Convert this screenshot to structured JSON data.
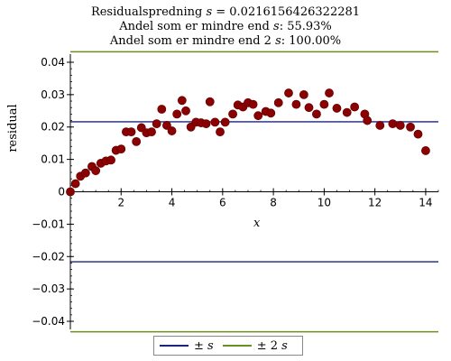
{
  "title_lines": {
    "line1_prefix": "Residualspredning ",
    "line1_var": "s",
    "line1_value": " = 0.0216156426322281",
    "line2_prefix": "Andel som er mindre end ",
    "line2_var": "s",
    "line2_value": ": 55.93%",
    "line3_prefix": "Andel som er mindre end 2 ",
    "line3_var": "s",
    "line3_value": ": 100.00%"
  },
  "colors": {
    "points": "#8b0000",
    "s_line": "#1a237e",
    "two_s_line": "#6b8e23",
    "axis": "#000000"
  },
  "legend": [
    {
      "label_prefix": "± ",
      "label_var": "s",
      "color": "#1a237e"
    },
    {
      "label_prefix": "± 2 ",
      "label_var": "s",
      "color": "#6b8e23"
    }
  ],
  "chart_data": {
    "type": "scatter",
    "xlabel": "x",
    "ylabel": "residual",
    "xlim": [
      0,
      14.5
    ],
    "ylim": [
      -0.0425,
      0.0425
    ],
    "x_ticks": [
      2,
      4,
      6,
      8,
      10,
      12,
      14
    ],
    "y_ticks": [
      0.04,
      0.03,
      0.02,
      0.01,
      0,
      -0.01,
      -0.02,
      -0.03,
      -0.04
    ],
    "y_tick_labels": [
      "0.04",
      "0.03",
      "0.02",
      "0.01",
      "0",
      "−0.01",
      "−0.02",
      "−0.03",
      "−0.04"
    ],
    "s_value": 0.0216156426322281,
    "points": [
      [
        0.0,
        0.0
      ],
      [
        0.2,
        0.0025
      ],
      [
        0.4,
        0.0048
      ],
      [
        0.6,
        0.0058
      ],
      [
        0.85,
        0.0078
      ],
      [
        1.0,
        0.0065
      ],
      [
        1.2,
        0.0088
      ],
      [
        1.4,
        0.0095
      ],
      [
        1.6,
        0.0098
      ],
      [
        1.8,
        0.0128
      ],
      [
        2.0,
        0.0132
      ],
      [
        2.2,
        0.0185
      ],
      [
        2.4,
        0.0185
      ],
      [
        2.6,
        0.0155
      ],
      [
        2.8,
        0.0198
      ],
      [
        3.0,
        0.0182
      ],
      [
        3.2,
        0.0185
      ],
      [
        3.4,
        0.021
      ],
      [
        3.6,
        0.0255
      ],
      [
        3.8,
        0.0205
      ],
      [
        4.0,
        0.0188
      ],
      [
        4.2,
        0.024
      ],
      [
        4.4,
        0.0282
      ],
      [
        4.55,
        0.025
      ],
      [
        4.75,
        0.02
      ],
      [
        4.95,
        0.0215
      ],
      [
        5.15,
        0.0213
      ],
      [
        5.35,
        0.021
      ],
      [
        5.5,
        0.0278
      ],
      [
        5.7,
        0.0215
      ],
      [
        5.9,
        0.0185
      ],
      [
        6.1,
        0.0215
      ],
      [
        6.4,
        0.024
      ],
      [
        6.6,
        0.0268
      ],
      [
        6.8,
        0.0262
      ],
      [
        7.0,
        0.0275
      ],
      [
        7.2,
        0.027
      ],
      [
        7.4,
        0.0235
      ],
      [
        7.7,
        0.0248
      ],
      [
        7.9,
        0.0243
      ],
      [
        8.2,
        0.0275
      ],
      [
        8.6,
        0.0305
      ],
      [
        8.9,
        0.027
      ],
      [
        9.2,
        0.03
      ],
      [
        9.4,
        0.026
      ],
      [
        9.7,
        0.024
      ],
      [
        10.0,
        0.027
      ],
      [
        10.2,
        0.0305
      ],
      [
        10.5,
        0.0258
      ],
      [
        10.9,
        0.0245
      ],
      [
        11.2,
        0.0262
      ],
      [
        11.6,
        0.024
      ],
      [
        11.7,
        0.022
      ],
      [
        12.2,
        0.0205
      ],
      [
        12.7,
        0.021
      ],
      [
        13.0,
        0.0205
      ],
      [
        13.4,
        0.02
      ],
      [
        13.7,
        0.0178
      ],
      [
        14.0,
        0.0127
      ]
    ]
  }
}
